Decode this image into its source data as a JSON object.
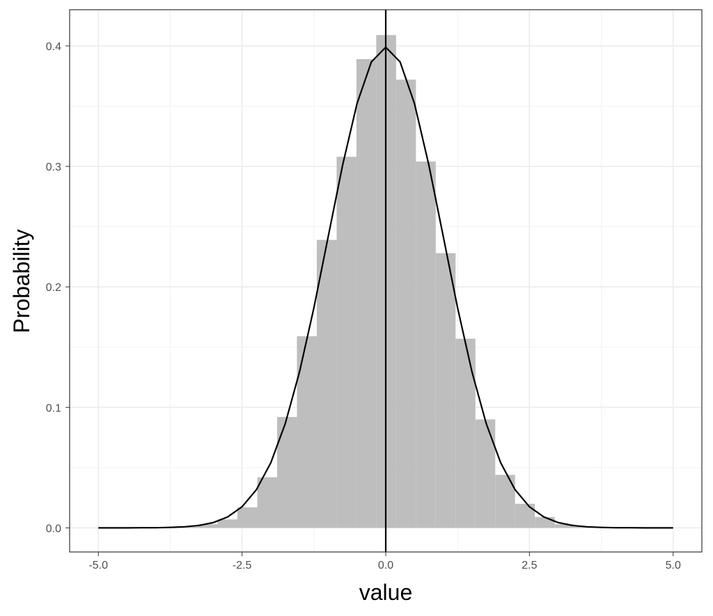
{
  "chart_data": {
    "type": "histogram",
    "xlabel": "value",
    "ylabel": "Probability",
    "bins": [
      -3.615,
      -3.27,
      -2.925,
      -2.58,
      -2.235,
      -1.89,
      -1.545,
      -1.2,
      -0.855,
      -0.51,
      -0.165,
      0.18,
      0.525,
      0.87,
      1.215,
      1.56,
      1.905,
      2.25,
      2.595,
      2.94,
      3.285,
      3.63
    ],
    "values": [
      0.001,
      0.003,
      0.007,
      0.017,
      0.042,
      0.092,
      0.159,
      0.239,
      0.308,
      0.389,
      0.409,
      0.372,
      0.304,
      0.228,
      0.157,
      0.09,
      0.044,
      0.02,
      0.009,
      0.003,
      0.001
    ],
    "color": "#bebebe",
    "density": {
      "x": [
        -5,
        -4.75,
        -4.5,
        -4.25,
        -4,
        -3.75,
        -3.5,
        -3.25,
        -3,
        -2.75,
        -2.5,
        -2.25,
        -2,
        -1.75,
        -1.5,
        -1.25,
        -1,
        -0.75,
        -0.5,
        -0.25,
        0,
        0.25,
        0.5,
        0.75,
        1,
        1.25,
        1.5,
        1.75,
        2,
        2.25,
        2.5,
        2.75,
        3,
        3.25,
        3.5,
        3.75,
        4,
        4.25,
        4.5,
        4.75,
        5
      ],
      "y": [
        0,
        0,
        0,
        0.0001,
        0.0001,
        0.0004,
        0.0009,
        0.002,
        0.0044,
        0.0091,
        0.0175,
        0.0317,
        0.054,
        0.0863,
        0.1295,
        0.1826,
        0.242,
        0.3011,
        0.3521,
        0.3867,
        0.3989,
        0.3867,
        0.3521,
        0.3011,
        0.242,
        0.1826,
        0.1295,
        0.0863,
        0.054,
        0.0317,
        0.0175,
        0.0091,
        0.0044,
        0.002,
        0.0009,
        0.0004,
        0.0001,
        0.0001,
        0,
        0,
        0
      ],
      "color": "#000000"
    },
    "vline": 0,
    "xlim": [
      -5.5,
      5.5
    ],
    "ylim": [
      -0.02,
      0.43
    ],
    "xticks": [
      {
        "value": -5,
        "label": "-5.0"
      },
      {
        "value": -2.5,
        "label": "-2.5"
      },
      {
        "value": 0,
        "label": "0.0"
      },
      {
        "value": 2.5,
        "label": "2.5"
      },
      {
        "value": 5,
        "label": "5.0"
      }
    ],
    "yticks": [
      {
        "value": 0,
        "label": "0.0"
      },
      0.1,
      0.2,
      0.3,
      0.4
    ],
    "xminor": [
      -3.75,
      -1.25,
      1.25,
      3.75
    ],
    "yminor": [
      0.05,
      0.15,
      0.25,
      0.35
    ],
    "grid": true
  }
}
